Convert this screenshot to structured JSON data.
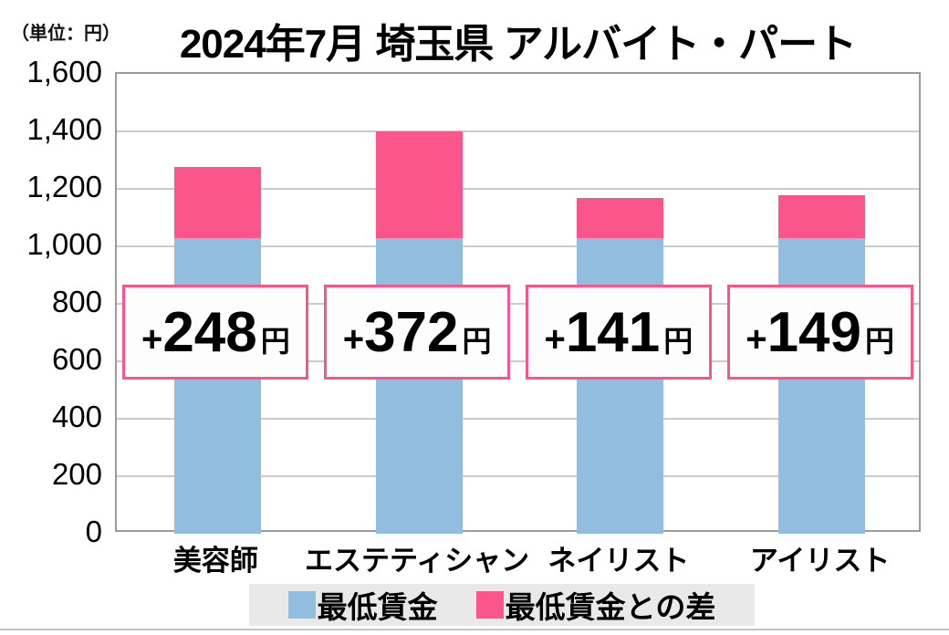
{
  "unit_label": "（単位：円）",
  "title": "2024年7月 埼玉県 アルバイト・パート",
  "colors": {
    "bar_blue": "#91bede",
    "bar_pink": "#fa568c",
    "gridline": "#cbcbcb",
    "plot_border": "#9b9b9b",
    "legend_bg": "#e9e9e9",
    "callout_bg": "#fdfdfd",
    "callout_border": "#f9548c"
  },
  "y_axis": {
    "tick_labels": [
      "1,600",
      "1,400",
      "1,200",
      "1,000",
      "800",
      "600",
      "400",
      "200",
      "0"
    ],
    "min": 0,
    "max": 1600,
    "step": 200
  },
  "legend": {
    "items": [
      {
        "label": "最低賃金",
        "color_key": "bar_blue"
      },
      {
        "label": "最低賃金との差",
        "color_key": "bar_pink"
      }
    ]
  },
  "callouts": [
    {
      "plus": "+",
      "value": "248",
      "unit": "円"
    },
    {
      "plus": "+",
      "value": "372",
      "unit": "円"
    },
    {
      "plus": "+",
      "value": "141",
      "unit": "円"
    },
    {
      "plus": "+",
      "value": "149",
      "unit": "円"
    }
  ],
  "chart_data": {
    "type": "bar",
    "stacked": true,
    "title": "2024年7月 埼玉県 アルバイト・パート",
    "unit": "円",
    "categories": [
      "美容師",
      "エステティシャン",
      "ネイリスト",
      "アイリスト"
    ],
    "series": [
      {
        "name": "最低賃金",
        "color": "#91bede",
        "values": [
          1028,
          1028,
          1028,
          1028
        ]
      },
      {
        "name": "最低賃金との差",
        "color": "#fa568c",
        "values": [
          248,
          372,
          141,
          149
        ]
      }
    ],
    "totals": [
      1276,
      1400,
      1169,
      1177
    ],
    "bar_value_labels": [
      "+248円",
      "+372円",
      "+141円",
      "+149円"
    ],
    "ylim": [
      0,
      1600
    ],
    "y_step": 200,
    "grid": true,
    "legend_position": "bottom"
  }
}
